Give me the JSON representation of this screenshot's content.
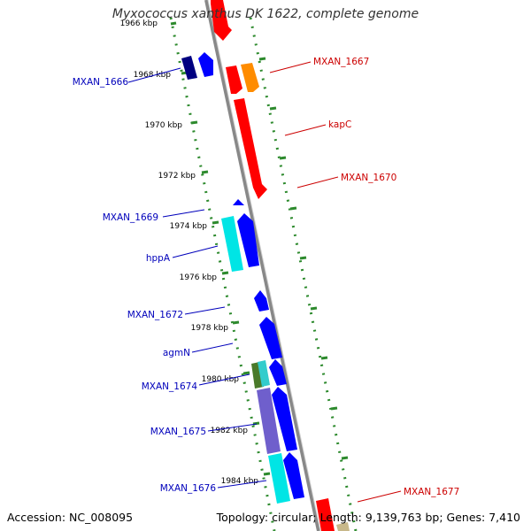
{
  "title": "Myxococcus xanthus DK 1622, complete genome",
  "footer": {
    "accession": "Accession: NC_008095",
    "stats": "Topology: circular; Length: 9,139,763 bp; Genes: 7,410"
  },
  "colors": {
    "forward_label": "#cc0000",
    "reverse_label": "#0000bb",
    "backbone": "#888888",
    "ruler": "#2d8a2d"
  },
  "ticks": [
    "1966 kbp",
    "1968 kbp",
    "1970 kbp",
    "1972 kbp",
    "1974 kbp",
    "1976 kbp",
    "1978 kbp",
    "1980 kbp",
    "1982 kbp",
    "1984 kbp"
  ],
  "labels_left": [
    "MXAN_1666",
    "MXAN_1669",
    "hppA",
    "MXAN_1672",
    "agmN",
    "MXAN_1674",
    "MXAN_1675",
    "MXAN_1676"
  ],
  "labels_right": [
    "MXAN_1667",
    "kapC",
    "MXAN_1670",
    "MXAN_1677"
  ]
}
